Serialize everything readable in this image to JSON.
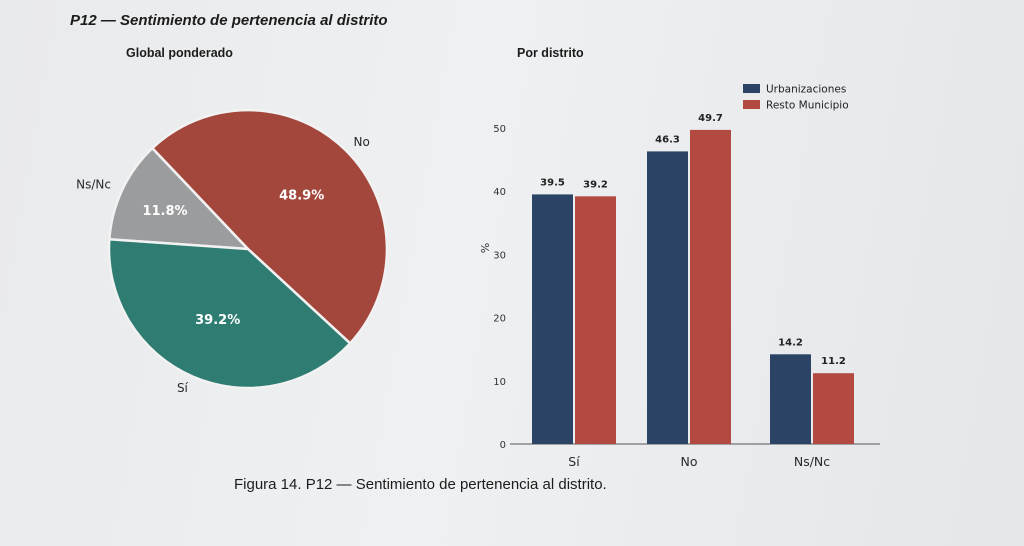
{
  "title": "P12 — Sentimiento de pertenencia al distrito",
  "caption": "Figura 14. P12 — Sentimiento de pertenencia al distrito.",
  "chart_data": [
    {
      "type": "pie",
      "title": "Global ponderado",
      "slices": [
        {
          "label": "Sí",
          "value": 39.2,
          "value_label": "39.2%",
          "color": "#2f7d72"
        },
        {
          "label": "No",
          "value": 48.9,
          "value_label": "48.9%",
          "color": "#a3473d"
        },
        {
          "label": "Ns/Nc",
          "value": 11.8,
          "value_label": "11.8%",
          "color": "#9b9c9e"
        }
      ]
    },
    {
      "type": "bar",
      "title": "Por distrito",
      "ylabel": "%",
      "ylim": [
        0,
        50
      ],
      "yticks": [
        "0",
        "10",
        "20",
        "30",
        "40",
        "50"
      ],
      "categories": [
        "Sí",
        "No",
        "Ns/Nc"
      ],
      "legend_position": "top-right",
      "series": [
        {
          "name": "Urbanizaciones",
          "color": "#2b4466",
          "values": [
            39.5,
            46.3,
            14.2
          ],
          "labels": [
            "39.5",
            "46.3",
            "14.2"
          ]
        },
        {
          "name": "Resto Municipio",
          "color": "#b24a42",
          "values": [
            39.2,
            49.7,
            11.2
          ],
          "labels": [
            "39.2",
            "49.7",
            "11.2"
          ]
        }
      ]
    }
  ]
}
